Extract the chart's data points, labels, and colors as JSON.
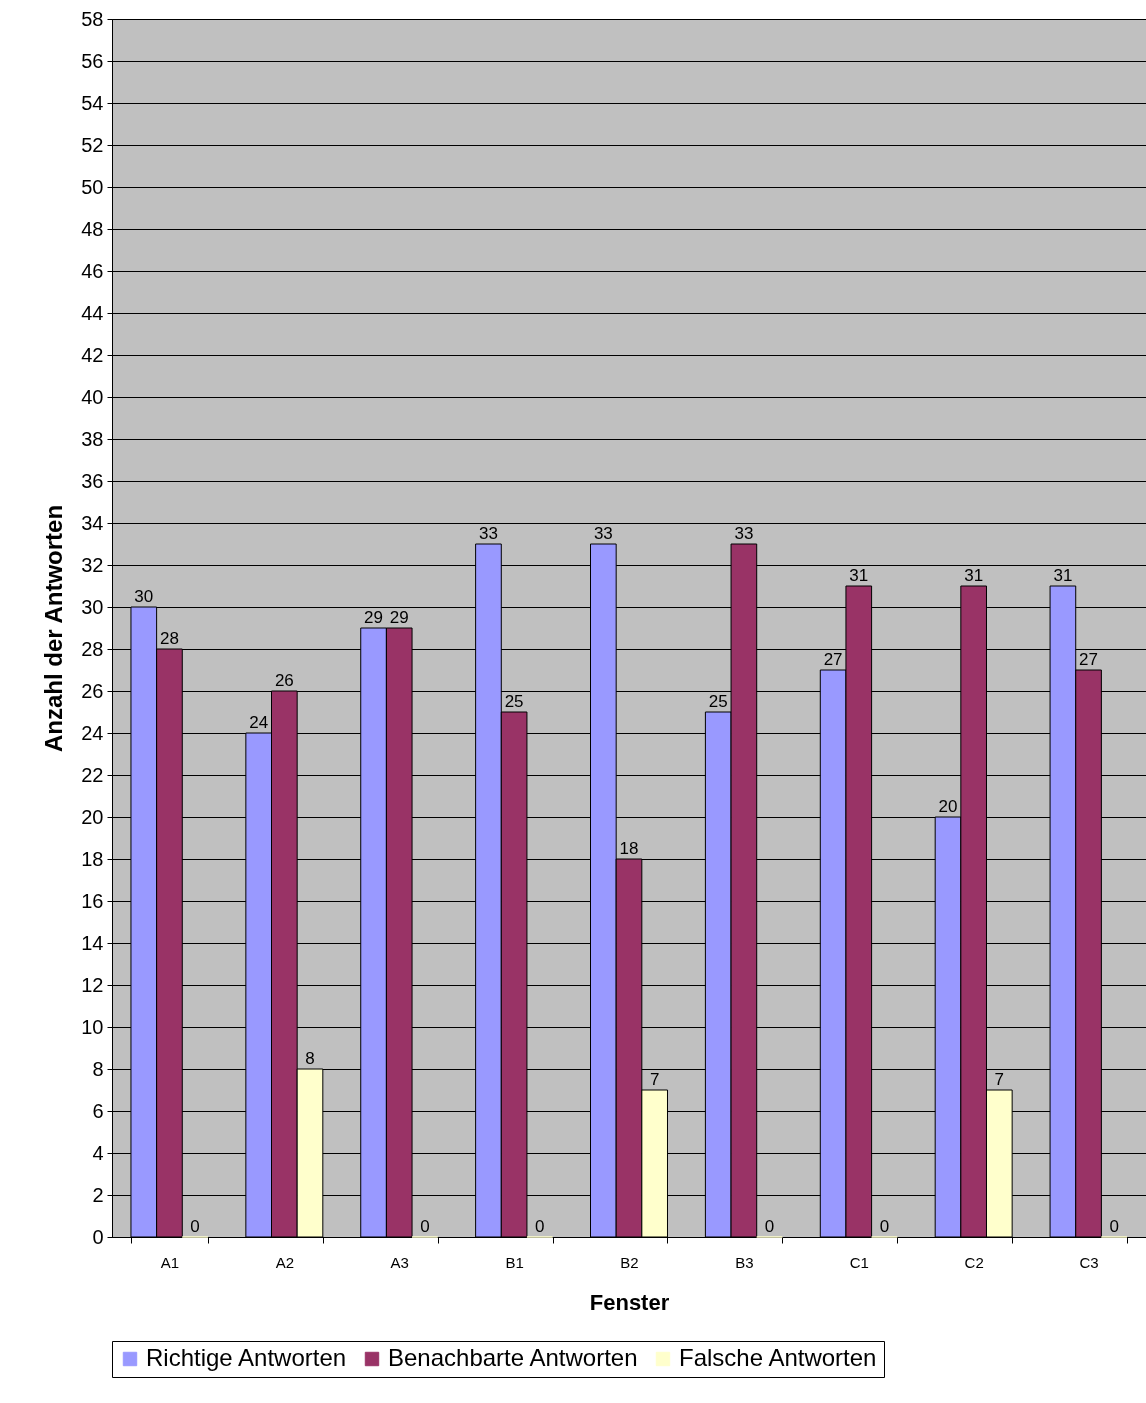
{
  "chart_data": {
    "type": "bar",
    "xlabel": "Fenster",
    "ylabel": "Anzahl der Antworten",
    "categories": [
      "A1",
      "A2",
      "A3",
      "B1",
      "B2",
      "B3",
      "C1",
      "C2",
      "C3"
    ],
    "series": [
      {
        "name": "Richtige Antworten",
        "color": "#9999ff",
        "values": [
          30,
          24,
          29,
          33,
          33,
          25,
          27,
          20,
          31
        ]
      },
      {
        "name": "Benachbarte Antworten",
        "color": "#993366",
        "values": [
          28,
          26,
          29,
          25,
          18,
          33,
          31,
          31,
          27
        ]
      },
      {
        "name": "Falsche Antworten",
        "color": "#ffffcc",
        "values": [
          0,
          8,
          0,
          0,
          7,
          0,
          0,
          7,
          0
        ]
      }
    ],
    "ylim": [
      0,
      58
    ],
    "yticks": [
      0,
      2,
      4,
      6,
      8,
      10,
      12,
      14,
      16,
      18,
      20,
      22,
      24,
      26,
      28,
      30,
      32,
      34,
      36,
      38,
      40,
      42,
      44,
      46,
      48,
      50,
      52,
      54,
      56,
      58
    ],
    "grid": "y",
    "legend": "bottom",
    "data_labels": true
  }
}
